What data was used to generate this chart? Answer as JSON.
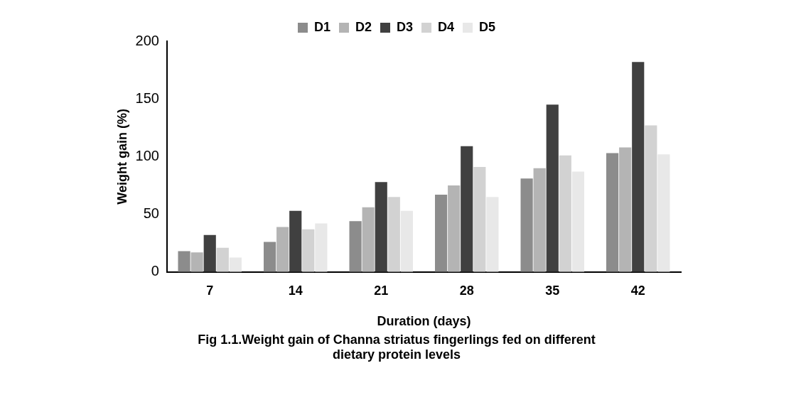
{
  "chart_data": {
    "type": "bar",
    "title": "Fig 1.1.Weight gain of Channa striatus fingerlings fed on different dietary protein levels",
    "xlabel": "Duration (days)",
    "ylabel": "Weight gain (%)",
    "categories": [
      "7",
      "14",
      "21",
      "28",
      "35",
      "42"
    ],
    "series": [
      {
        "name": "D1",
        "color": "#8c8c8c",
        "values": [
          18,
          26,
          44,
          67,
          81,
          103
        ]
      },
      {
        "name": "D2",
        "color": "#b4b4b4",
        "values": [
          17,
          39,
          56,
          75,
          90,
          108
        ]
      },
      {
        "name": "D3",
        "color": "#404040",
        "values": [
          32,
          53,
          78,
          109,
          145,
          182
        ]
      },
      {
        "name": "D4",
        "color": "#d2d2d2",
        "values": [
          21,
          37,
          65,
          91,
          101,
          127
        ]
      },
      {
        "name": "D5",
        "color": "#e8e8e8",
        "values": [
          12.5,
          42,
          53,
          65,
          87,
          102
        ]
      }
    ],
    "ylim": [
      0,
      200
    ],
    "yticks": [
      0,
      50,
      100,
      150,
      200
    ],
    "grid": false,
    "legend": "top"
  }
}
